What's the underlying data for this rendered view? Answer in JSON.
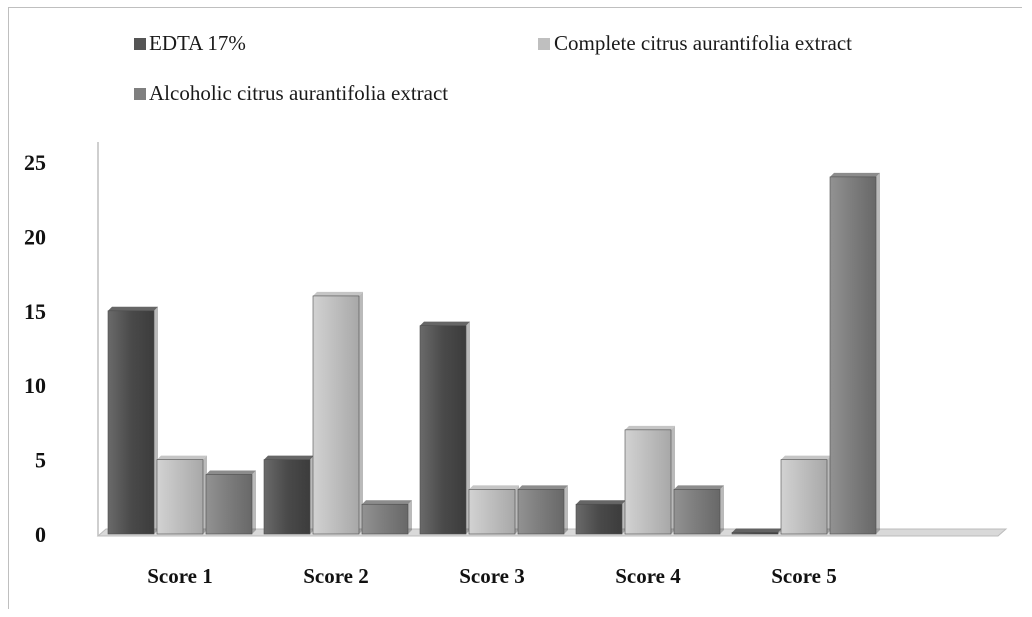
{
  "chart_data": {
    "type": "bar",
    "categories": [
      "Score 1",
      "Score 2",
      "Score 3",
      "Score 4",
      "Score 5"
    ],
    "series": [
      {
        "name": "EDTA 17%",
        "values": [
          15,
          5,
          14,
          2,
          0
        ],
        "color": "#555555"
      },
      {
        "name": "Complete citrus aurantifolia extract",
        "values": [
          5,
          16,
          3,
          7,
          5
        ],
        "color": "#bfbfbf"
      },
      {
        "name": "Alcoholic citrus aurantifolia extract",
        "values": [
          4,
          2,
          3,
          3,
          24
        ],
        "color": "#7f7f7f"
      }
    ],
    "y_ticks": [
      "0",
      "5",
      "10",
      "15",
      "20",
      "25"
    ],
    "ylim": [
      0,
      25
    ],
    "legend_position": "top",
    "grid": false,
    "title": "",
    "xlabel": "",
    "ylabel": ""
  }
}
